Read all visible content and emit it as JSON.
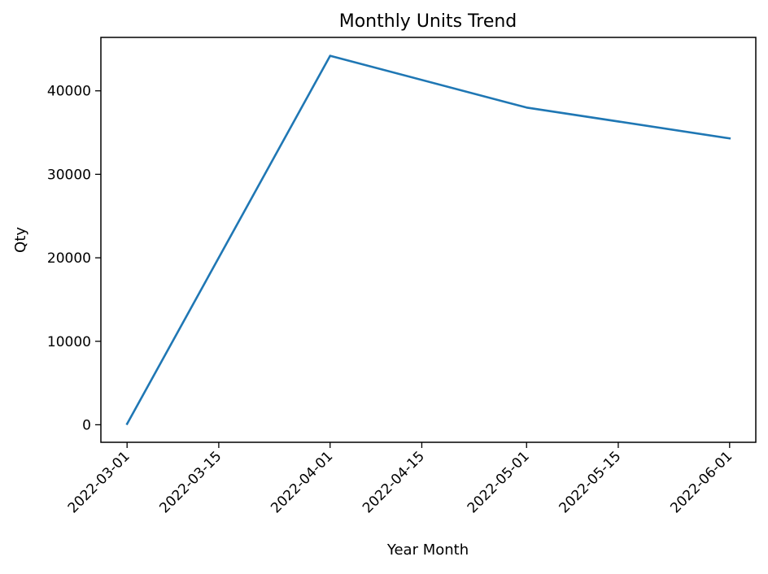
{
  "chart_data": {
    "type": "line",
    "title": "Monthly Units Trend",
    "xlabel": "Year Month",
    "ylabel": "Qty",
    "x_ticks": [
      "2022-03-01",
      "2022-03-15",
      "2022-04-01",
      "2022-04-15",
      "2022-05-01",
      "2022-05-15",
      "2022-06-01"
    ],
    "y_ticks": [
      0,
      10000,
      20000,
      30000,
      40000
    ],
    "xlim": [
      "2022-02-25",
      "2022-06-05"
    ],
    "ylim": [
      -2100,
      46400
    ],
    "grid": false,
    "series": [
      {
        "color": "#1f77b4",
        "x": [
          "2022-03-01",
          "2022-04-01",
          "2022-05-01",
          "2022-06-01"
        ],
        "values": [
          100,
          44200,
          38000,
          34300
        ]
      }
    ]
  }
}
